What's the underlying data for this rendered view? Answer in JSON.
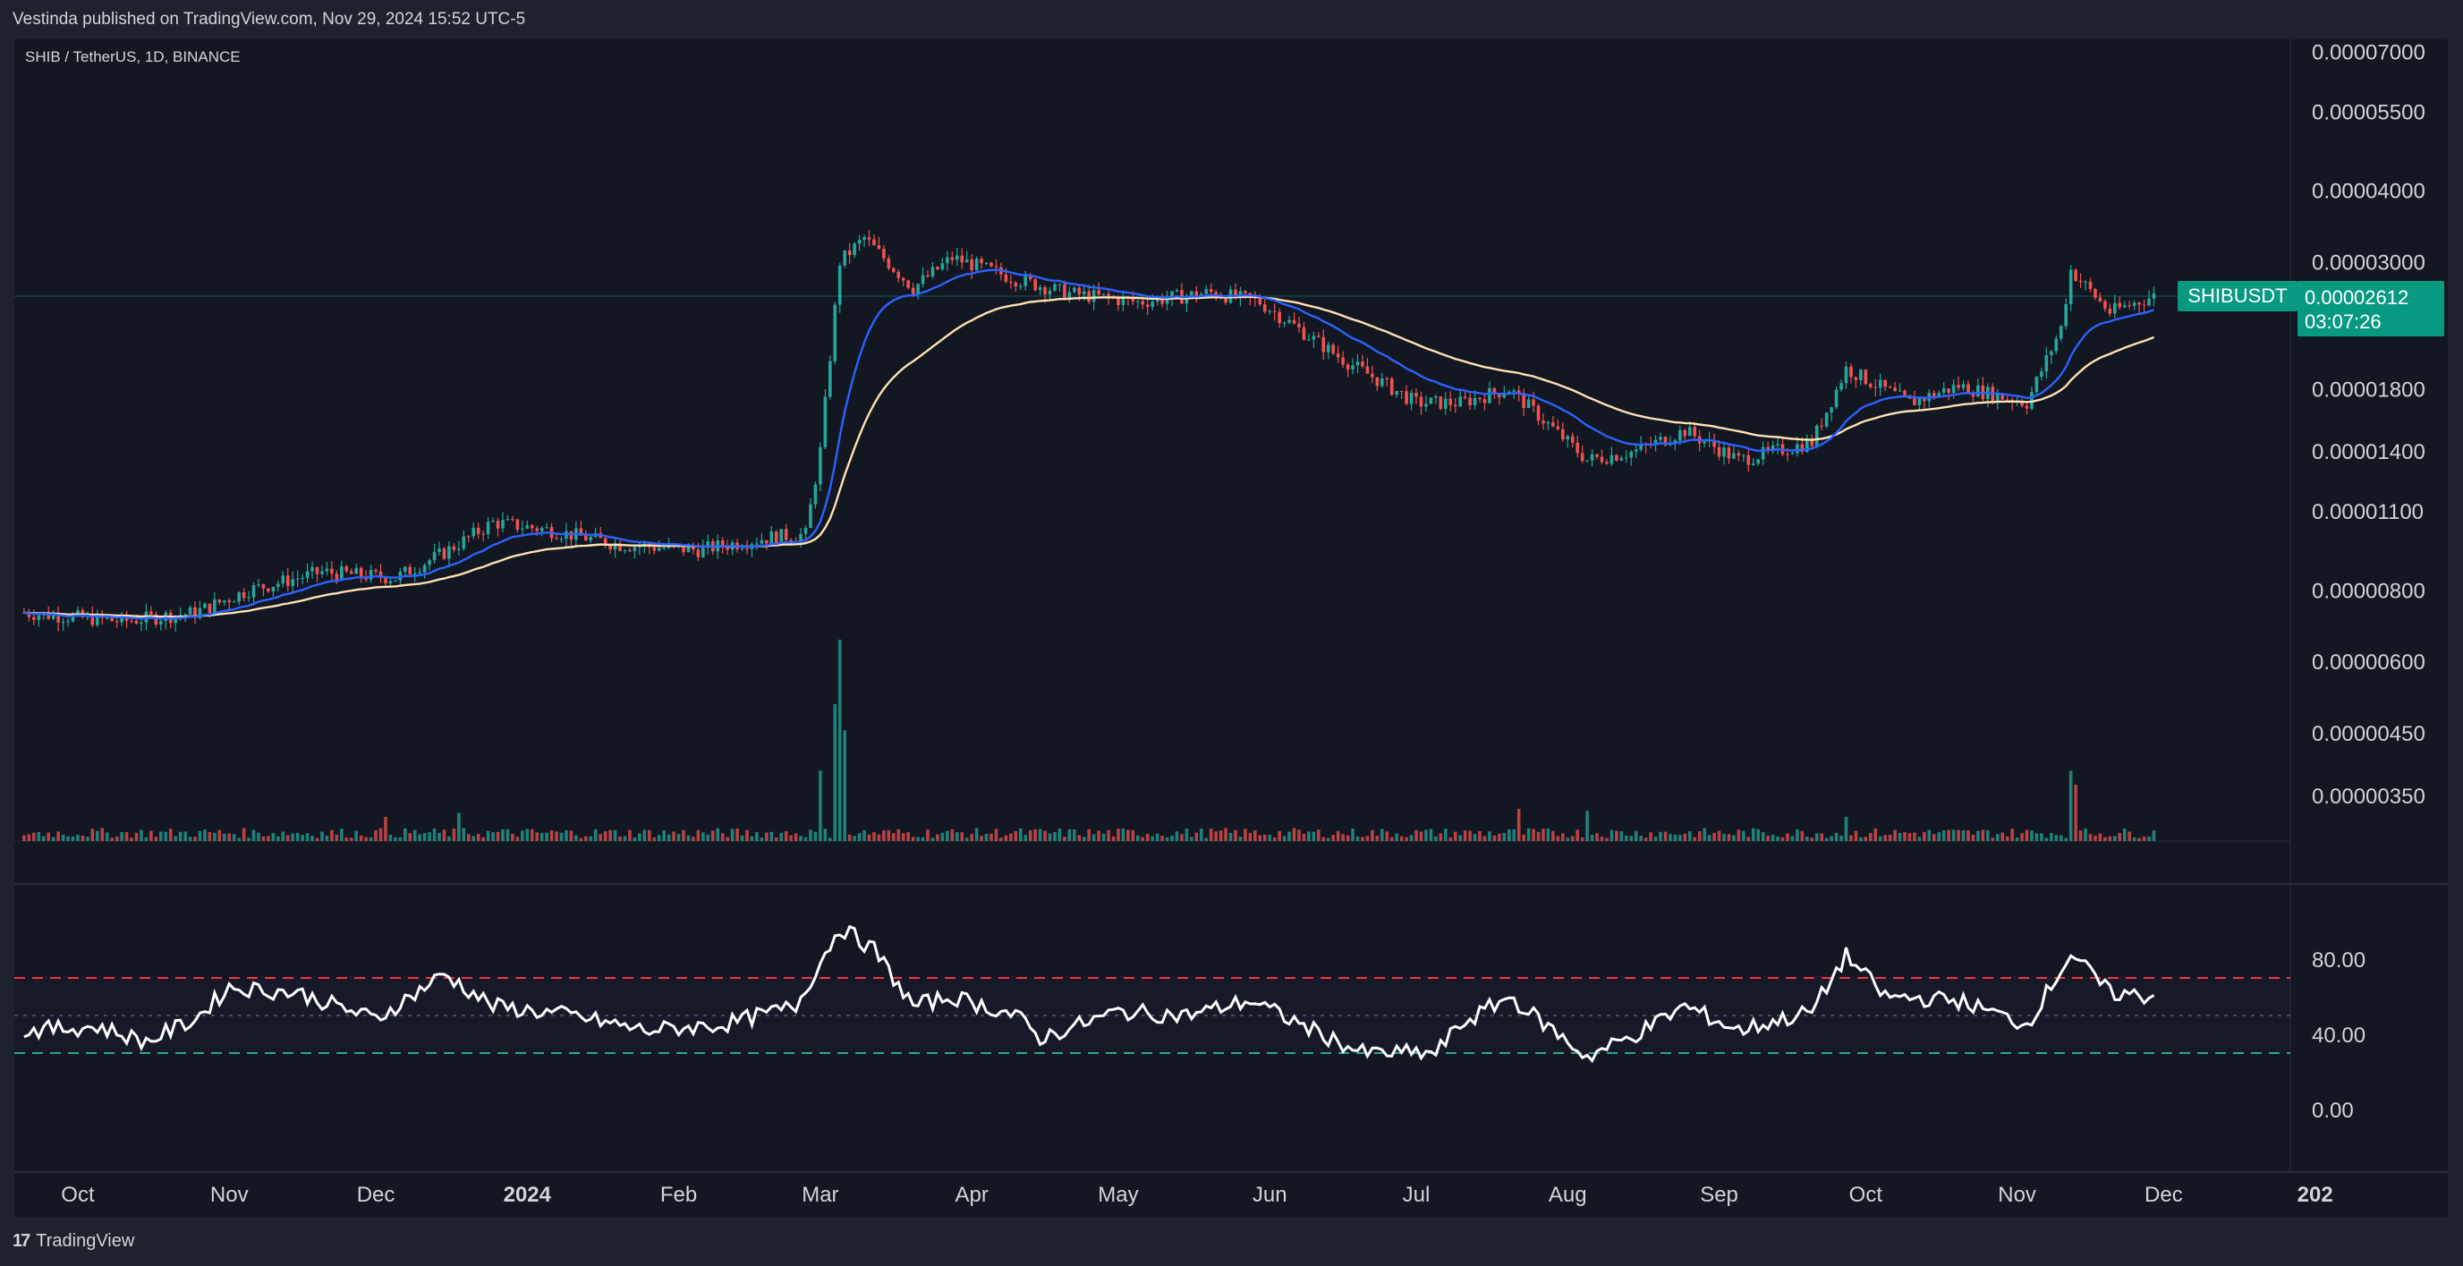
{
  "header": {
    "publish_text": "Vestinda published on TradingView.com, Nov 29, 2024 15:52 UTC-5"
  },
  "symbol": {
    "title": "SHIB / TetherUS, 1D, BINANCE",
    "ticker_badge": "SHIBUSDT",
    "last_price": "0.00002612",
    "countdown": "03:07:26"
  },
  "colors": {
    "background": "#131722",
    "panel": "#1e222d",
    "up": "#26a69a",
    "down": "#ef5350",
    "ema_fast": "#2962ff",
    "ema_slow": "#ffe0b2",
    "rsi_line": "#ffffff",
    "rsi_upper": "#f23645",
    "rsi_lower": "#22ab94",
    "badge": "#089981"
  },
  "footer": {
    "logo_text": "TradingView",
    "logo_mark": "17"
  },
  "chart_data": [
    {
      "type": "candlestick",
      "title": "SHIB / TetherUS, 1D, BINANCE",
      "scale": "log",
      "y_ticks": [
        "0.00007000",
        "0.00005500",
        "0.00004000",
        "0.00003000",
        "0.00001800",
        "0.00001400",
        "0.00001100",
        "0.00000800",
        "0.00000600",
        "0.00000450",
        "0.00000350"
      ],
      "x_ticks": [
        "Oct",
        "Nov",
        "Dec",
        "2024",
        "Feb",
        "Mar",
        "Apr",
        "May",
        "Jun",
        "Jul",
        "Aug",
        "Sep",
        "Oct",
        "Nov",
        "Dec",
        "202"
      ],
      "close_keypoints": [
        [
          "2023-09-20",
          7.3e-06
        ],
        [
          "2023-10-10",
          7.05e-06
        ],
        [
          "2023-10-25",
          7.3e-06
        ],
        [
          "2023-11-05",
          8e-06
        ],
        [
          "2023-11-20",
          8.6e-06
        ],
        [
          "2023-12-05",
          8.4e-06
        ],
        [
          "2023-12-15",
          9.3e-06
        ],
        [
          "2023-12-25",
          1.05e-05
        ],
        [
          "2024-01-05",
          1.02e-05
        ],
        [
          "2024-01-20",
          9.6e-06
        ],
        [
          "2024-02-05",
          9.4e-06
        ],
        [
          "2024-02-20",
          9.9e-06
        ],
        [
          "2024-02-27",
          1e-05
        ],
        [
          "2024-03-01",
          1.4e-05
        ],
        [
          "2024-03-05",
          3e-05
        ],
        [
          "2024-03-10",
          3.3e-05
        ],
        [
          "2024-03-20",
          2.7e-05
        ],
        [
          "2024-03-28",
          3.05e-05
        ],
        [
          "2024-04-10",
          2.8e-05
        ],
        [
          "2024-04-20",
          2.65e-05
        ],
        [
          "2024-05-05",
          2.55e-05
        ],
        [
          "2024-05-20",
          2.65e-05
        ],
        [
          "2024-05-30",
          2.55e-05
        ],
        [
          "2024-06-15",
          2.05e-05
        ],
        [
          "2024-07-01",
          1.7e-05
        ],
        [
          "2024-07-10",
          1.7e-05
        ],
        [
          "2024-07-20",
          1.8e-05
        ],
        [
          "2024-08-05",
          1.35e-05
        ],
        [
          "2024-08-15",
          1.4e-05
        ],
        [
          "2024-08-25",
          1.52e-05
        ],
        [
          "2024-09-05",
          1.35e-05
        ],
        [
          "2024-09-20",
          1.45e-05
        ],
        [
          "2024-09-27",
          1.95e-05
        ],
        [
          "2024-10-10",
          1.7e-05
        ],
        [
          "2024-10-20",
          1.82e-05
        ],
        [
          "2024-11-03",
          1.7e-05
        ],
        [
          "2024-11-10",
          2.3e-05
        ],
        [
          "2024-11-12",
          2.9e-05
        ],
        [
          "2024-11-20",
          2.45e-05
        ],
        [
          "2024-11-29",
          2.612e-05
        ]
      ],
      "series": [
        {
          "name": "",
          "color": "#2962ff",
          "kind": "ema-fast"
        },
        {
          "name": "",
          "color": "#ffe0b2",
          "kind": "ema-slow"
        }
      ]
    },
    {
      "type": "bar",
      "title": "",
      "volume_spikes": [
        [
          "2024-03-05",
          1.0
        ],
        [
          "2024-03-04",
          0.68
        ],
        [
          "2024-03-06",
          0.55
        ],
        [
          "2024-03-01",
          0.35
        ],
        [
          "2024-11-12",
          0.35
        ],
        [
          "2024-11-13",
          0.28
        ],
        [
          "2024-09-27",
          0.12
        ],
        [
          "2024-07-22",
          0.16
        ],
        [
          "2024-08-05",
          0.15
        ],
        [
          "2023-12-18",
          0.14
        ],
        [
          "2023-12-03",
          0.12
        ]
      ]
    },
    {
      "type": "line",
      "title": "",
      "y_ticks": [
        "80.00",
        "40.00",
        "0.00"
      ],
      "ylim": [
        0,
        100
      ],
      "bands": {
        "upper": 70,
        "middle": 50,
        "lower": 30
      },
      "series_keypoints": [
        [
          "2023-09-20",
          42
        ],
        [
          "2023-10-05",
          44
        ],
        [
          "2023-10-15",
          36
        ],
        [
          "2023-10-25",
          48
        ],
        [
          "2023-11-01",
          65
        ],
        [
          "2023-11-15",
          62
        ],
        [
          "2023-12-01",
          48
        ],
        [
          "2023-12-15",
          72
        ],
        [
          "2023-12-25",
          55
        ],
        [
          "2024-01-10",
          50
        ],
        [
          "2024-01-25",
          42
        ],
        [
          "2024-02-10",
          45
        ],
        [
          "2024-02-25",
          55
        ],
        [
          "2024-03-05",
          97
        ],
        [
          "2024-03-12",
          85
        ],
        [
          "2024-03-20",
          55
        ],
        [
          "2024-03-28",
          60
        ],
        [
          "2024-04-10",
          50
        ],
        [
          "2024-04-15",
          38
        ],
        [
          "2024-05-01",
          52
        ],
        [
          "2024-05-15",
          50
        ],
        [
          "2024-05-28",
          58
        ],
        [
          "2024-06-10",
          42
        ],
        [
          "2024-06-20",
          30
        ],
        [
          "2024-07-05",
          30
        ],
        [
          "2024-07-10",
          45
        ],
        [
          "2024-07-20",
          60
        ],
        [
          "2024-08-05",
          28
        ],
        [
          "2024-08-15",
          40
        ],
        [
          "2024-08-25",
          55
        ],
        [
          "2024-09-05",
          42
        ],
        [
          "2024-09-20",
          52
        ],
        [
          "2024-09-27",
          82
        ],
        [
          "2024-10-05",
          60
        ],
        [
          "2024-10-20",
          58
        ],
        [
          "2024-11-03",
          45
        ],
        [
          "2024-11-12",
          83
        ],
        [
          "2024-11-20",
          62
        ],
        [
          "2024-11-29",
          60
        ]
      ]
    }
  ]
}
